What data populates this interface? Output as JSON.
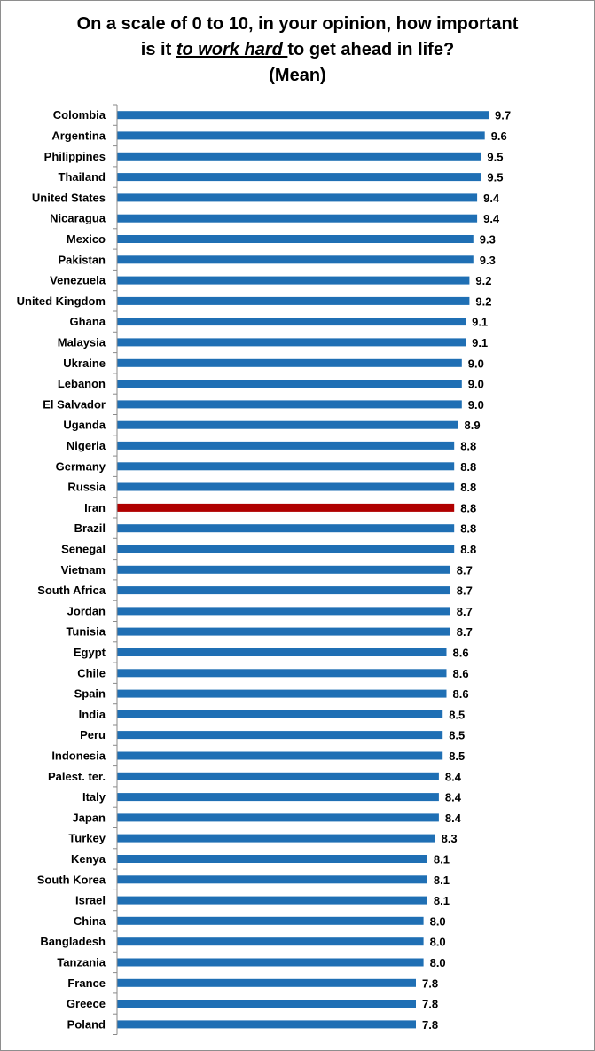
{
  "title": {
    "line1": "On a scale of 0 to 10, in your opinion, how important",
    "line2_pre": "is it ",
    "line2_em": "to work hard ",
    "line2_post": "to get ahead in life?",
    "line3": "(Mean)"
  },
  "colors": {
    "bar": "#1f6fb4",
    "highlight": "#b00000",
    "axis": "#8a8a8a"
  },
  "chart_data": {
    "type": "bar",
    "orientation": "horizontal",
    "xlim": [
      0,
      10
    ],
    "categories": [
      "Colombia",
      "Argentina",
      "Philippines",
      "Thailand",
      "United States",
      "Nicaragua",
      "Mexico",
      "Pakistan",
      "Venezuela",
      "United Kingdom",
      "Ghana",
      "Malaysia",
      "Ukraine",
      "Lebanon",
      "El Salvador",
      "Uganda",
      "Nigeria",
      "Germany",
      "Russia",
      "Iran",
      "Brazil",
      "Senegal",
      "Vietnam",
      "South Africa",
      "Jordan",
      "Tunisia",
      "Egypt",
      "Chile",
      "Spain",
      "India",
      "Peru",
      "Indonesia",
      "Palest. ter.",
      "Italy",
      "Japan",
      "Turkey",
      "Kenya",
      "South Korea",
      "Israel",
      "China",
      "Bangladesh",
      "Tanzania",
      "France",
      "Greece",
      "Poland"
    ],
    "values": [
      9.7,
      9.6,
      9.5,
      9.5,
      9.4,
      9.4,
      9.3,
      9.3,
      9.2,
      9.2,
      9.1,
      9.1,
      9.0,
      9.0,
      9.0,
      8.9,
      8.8,
      8.8,
      8.8,
      8.8,
      8.8,
      8.8,
      8.7,
      8.7,
      8.7,
      8.7,
      8.6,
      8.6,
      8.6,
      8.5,
      8.5,
      8.5,
      8.4,
      8.4,
      8.4,
      8.3,
      8.1,
      8.1,
      8.1,
      8.0,
      8.0,
      8.0,
      7.8,
      7.8,
      7.8
    ],
    "data_labels": [
      "9.7",
      "9.6",
      "9.5",
      "9.5",
      "9.4",
      "9.4",
      "9.3",
      "9.3",
      "9.2",
      "9.2",
      "9.1",
      "9.1",
      "9.0",
      "9.0",
      "9.0",
      "8.9",
      "8.8",
      "8.8",
      "8.8",
      "8.8",
      "8.8",
      "8.8",
      "8.7",
      "8.7",
      "8.7",
      "8.7",
      "8.6",
      "8.6",
      "8.6",
      "8.5",
      "8.5",
      "8.5",
      "8.4",
      "8.4",
      "8.4",
      "8.3",
      "8.1",
      "8.1",
      "8.1",
      "8.0",
      "8.0",
      "8.0",
      "7.8",
      "7.8",
      "7.8"
    ],
    "highlight": "Iran",
    "grid": false,
    "legend": "none"
  }
}
